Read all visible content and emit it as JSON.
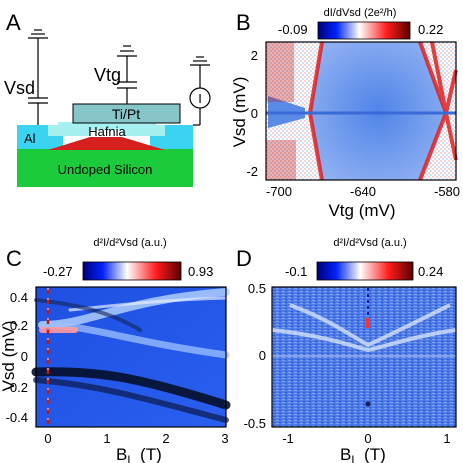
{
  "panels": {
    "A": {
      "letter": "A",
      "vsd": "Vsd",
      "vtg": "Vtg",
      "current_symbol": "I",
      "gate_metal": "Ti/Pt",
      "dielectric": "Hafnia",
      "contact": "Al",
      "substrate": "Undoped Silicon",
      "colors": {
        "gate": "#86c5c8",
        "hafnia": "#a7f0f2",
        "al": "#3ad3f0",
        "si": "#1ccb3b",
        "wire": "#d61f1f"
      }
    },
    "B": {
      "letter": "B",
      "colorbar_label": "dI/dVsd (2e²/h)",
      "cbar_min": "-0.09",
      "cbar_max": "0.22",
      "xlabel": "Vtg (mV)",
      "ylabel": "Vsd (mV)",
      "xticks": [
        "-700",
        "-640",
        "-580"
      ],
      "yticks": [
        "2",
        "0",
        "-2"
      ]
    },
    "C": {
      "letter": "C",
      "colorbar_label": "d²I/d²Vsd (a.u.)",
      "cbar_min": "-0.27",
      "cbar_max": "0.93",
      "xlabel": "B",
      "xlabel_sub": "L",
      "xunit": "(T)",
      "ylabel": "Vsd (mV)",
      "xticks": [
        "0",
        "1",
        "2",
        "3"
      ],
      "yticks": [
        "0.4",
        "0.2",
        "0",
        "-0.2",
        "-0.4"
      ]
    },
    "D": {
      "letter": "D",
      "colorbar_label": "d²I/d²Vsd (a.u.)",
      "cbar_min": "-0.1",
      "cbar_max": "0.24",
      "xlabel": "B",
      "xlabel_sub": "L",
      "xunit": "(T)",
      "xticks": [
        "-1",
        "0",
        "1"
      ],
      "yticks": [
        "0.5",
        "0",
        "-0.5"
      ]
    }
  }
}
